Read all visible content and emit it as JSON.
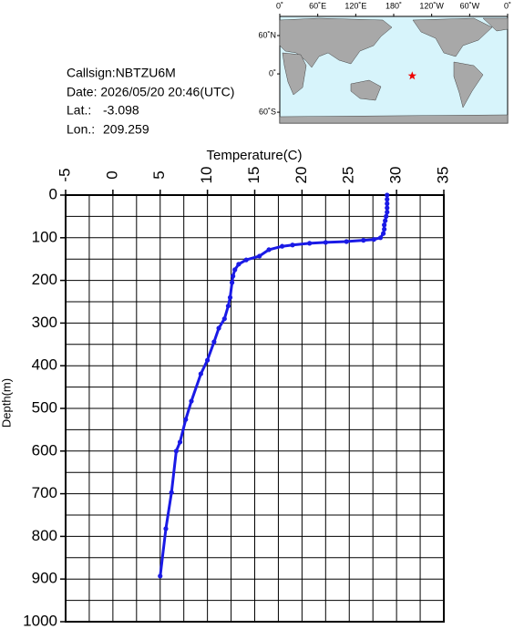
{
  "info": {
    "callsign": "Callsign:NBTZU6M",
    "date": "Date:  2026/05/20 20:46(UTC)",
    "lat_label": "Lat.:",
    "lat": -3.098,
    "lon_label": "Lon.:",
    "lon": 209.259
  },
  "map": {
    "lonlim": [
      0,
      360
    ],
    "latlim": [
      90,
      -77
    ],
    "lon_ticks": [
      {
        "value": 0,
        "label": "0˚"
      },
      {
        "value": 60,
        "label": "60˚E"
      },
      {
        "value": 120,
        "label": "120˚E"
      },
      {
        "value": 180,
        "label": "180˚"
      },
      {
        "value": 240,
        "label": "120˚W"
      },
      {
        "value": 300,
        "label": "60˚W"
      },
      {
        "value": 360,
        "label": "0˚"
      }
    ],
    "lat_ticks": [
      {
        "value": 60,
        "label": "60˚N"
      },
      {
        "value": 0,
        "label": "0˚"
      },
      {
        "value": -60,
        "label": "60˚S"
      }
    ]
  },
  "chart_data": {
    "type": "line",
    "title": "Temperature(C)",
    "y_label": "Depth(m)",
    "color": "#1a1ae6",
    "x": [
      29.0,
      29.0,
      29.0,
      29.0,
      29.0,
      28.9,
      28.8,
      28.7,
      28.7,
      28.6,
      28.3,
      27.6,
      26.5,
      24.7,
      22.5,
      20.8,
      19.0,
      17.9,
      16.5,
      15.5,
      14.1,
      13.3,
      12.9,
      12.7,
      12.6,
      12.4,
      12.2,
      11.8,
      11.2,
      10.7,
      10.0,
      9.3,
      8.3,
      7.7,
      7.1,
      6.7,
      6.2,
      5.6,
      5.0
    ],
    "values": [
      0,
      10,
      20,
      30,
      40,
      50,
      60,
      70,
      80,
      90,
      100,
      104,
      106,
      109,
      111,
      113,
      117,
      120,
      128,
      143,
      152,
      162,
      175,
      190,
      205,
      240,
      260,
      290,
      312,
      344,
      387,
      419,
      483,
      526,
      579,
      600,
      697,
      782,
      893
    ],
    "xlim": [
      -5,
      35
    ],
    "xticks": [
      -5,
      0,
      5,
      10,
      15,
      20,
      25,
      30,
      35
    ],
    "xminorticks": [
      -2.5,
      2.5,
      7.5,
      12.5,
      17.5,
      22.5,
      27.5,
      32.5
    ],
    "ylim": [
      0,
      1000
    ],
    "yticks": [
      0,
      100,
      200,
      300,
      400,
      500,
      600,
      700,
      800,
      900,
      1000
    ],
    "yminorticks": [
      50,
      150,
      250,
      350,
      450,
      550,
      650,
      750,
      850,
      950
    ],
    "grid": true
  }
}
